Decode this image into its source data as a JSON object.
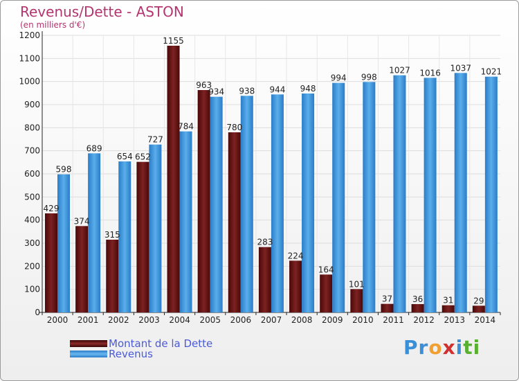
{
  "header": {
    "title": "Revenus/Dette - ASTON",
    "subtitle": "(en milliers d'€)"
  },
  "chart_data": {
    "type": "bar",
    "title": "Revenus/Dette - ASTON",
    "ylabel": "(en milliers d'€)",
    "xlabel": "",
    "categories": [
      "2000",
      "2001",
      "2002",
      "2003",
      "2004",
      "2005",
      "2006",
      "2007",
      "2008",
      "2009",
      "2010",
      "2011",
      "2012",
      "2013",
      "2014"
    ],
    "series": [
      {
        "name": "Montant de la Dette",
        "color": "#6e1616",
        "values": [
          429,
          374,
          315,
          652,
          1155,
          963,
          780,
          283,
          224,
          164,
          101,
          37,
          36,
          31,
          29
        ]
      },
      {
        "name": "Revenus",
        "color": "#3a94de",
        "values": [
          598,
          689,
          654,
          727,
          784,
          934,
          938,
          944,
          948,
          994,
          998,
          1027,
          1016,
          1037,
          1021
        ]
      }
    ],
    "ylim": [
      0,
      1200
    ],
    "yticks": [
      0,
      100,
      200,
      300,
      400,
      500,
      600,
      700,
      800,
      900,
      1000,
      1100,
      1200
    ],
    "grid": true,
    "legend": "bottom-left"
  },
  "legend": {
    "items": [
      {
        "label": "Montant de la Dette",
        "color": "#6e1616"
      },
      {
        "label": "Revenus",
        "color": "#3a94de"
      }
    ]
  },
  "logo": {
    "text": "Proxiti"
  }
}
